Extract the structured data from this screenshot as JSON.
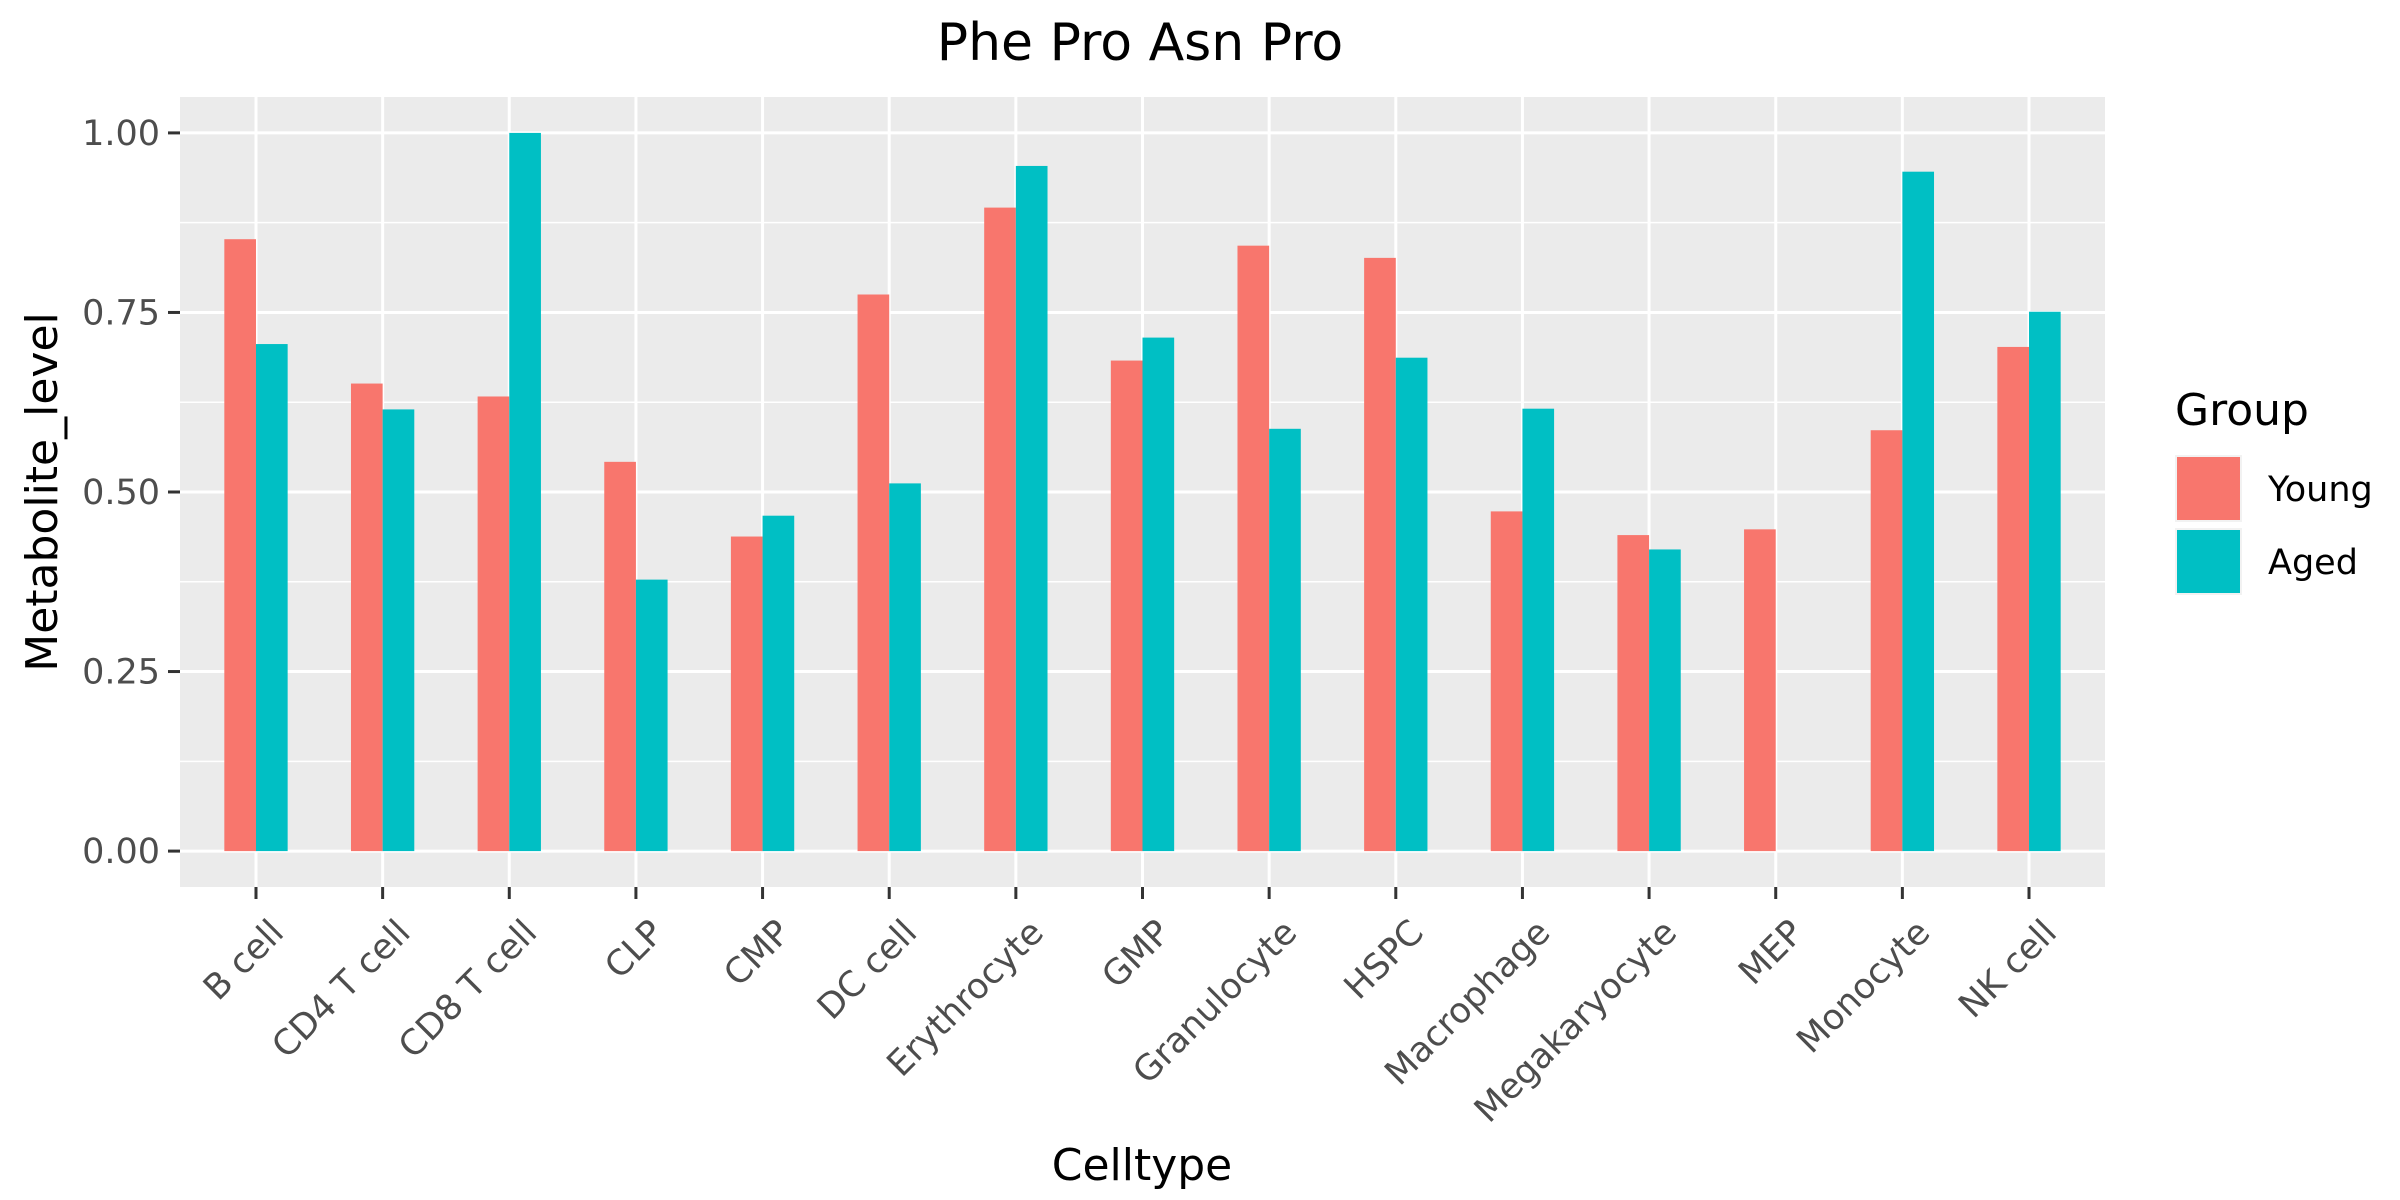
{
  "chart_data": {
    "type": "bar",
    "title": "Phe Pro Asn Pro",
    "xlabel": "Celltype",
    "ylabel": "Metabolite_level",
    "ylim": [
      -0.05,
      1.05
    ],
    "yticks": [
      0.0,
      0.25,
      0.5,
      0.75,
      1.0
    ],
    "ytick_labels": [
      "0.00",
      "0.25",
      "0.50",
      "0.75",
      "1.00"
    ],
    "grid": true,
    "legend": {
      "title": "Group",
      "placement": "right"
    },
    "categories": [
      "B cell",
      "CD4 T cell",
      "CD8 T cell",
      "CLP",
      "CMP",
      "DC cell",
      "Erythrocyte",
      "GMP",
      "Granulocyte",
      "HSPC",
      "Macrophage",
      "Megakaryocyte",
      "MEP",
      "Monocyte",
      "NK cell"
    ],
    "series": [
      {
        "name": "Young",
        "color": "#F8766D",
        "values": [
          0.852,
          0.651,
          0.633,
          0.542,
          0.438,
          0.775,
          0.896,
          0.683,
          0.843,
          0.826,
          0.473,
          0.44,
          0.448,
          0.586,
          0.702
        ]
      },
      {
        "name": "Aged",
        "color": "#00BFC4",
        "values": [
          0.706,
          0.615,
          1.0,
          0.378,
          0.467,
          0.512,
          0.954,
          0.715,
          0.588,
          0.687,
          0.616,
          0.42,
          null,
          0.946,
          0.751
        ]
      }
    ]
  },
  "colors": {
    "panel_background": "#EBEBEB",
    "grid_major": "#FFFFFF",
    "axis_tick": "#333333",
    "tick_text": "#4D4D4D"
  }
}
